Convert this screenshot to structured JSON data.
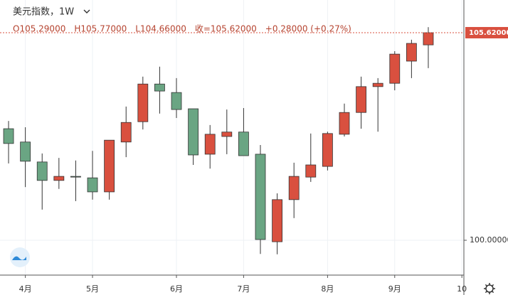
{
  "chart_data": {
    "type": "candlestick",
    "title": "美元指数，1W",
    "legend_line": [
      "O105.29000",
      "H105.77000",
      "L104.66000",
      "收=105.62000",
      "+0.28000 (+0.27%)"
    ],
    "open": [
      103.02,
      102.66,
      102.12,
      101.62,
      101.73,
      101.69,
      101.31,
      102.66,
      103.21,
      104.23,
      104.0,
      103.56,
      102.33,
      102.81,
      102.93,
      102.33,
      99.96,
      101.1,
      101.71,
      102.0,
      102.87,
      103.46,
      104.16,
      104.25,
      104.85,
      105.29
    ],
    "high": [
      103.23,
      103.06,
      102.35,
      102.23,
      102.16,
      102.42,
      102.71,
      103.62,
      104.43,
      104.7,
      104.39,
      103.56,
      103.12,
      103.54,
      103.58,
      102.58,
      101.27,
      102.1,
      102.89,
      102.94,
      103.7,
      104.43,
      104.39,
      105.12,
      105.43,
      105.77
    ],
    "low": [
      102.08,
      101.44,
      100.83,
      101.39,
      101.06,
      101.1,
      101.1,
      102.25,
      103.0,
      103.43,
      103.31,
      102.04,
      101.94,
      102.33,
      102.29,
      99.63,
      99.62,
      100.6,
      101.58,
      101.89,
      102.81,
      103.02,
      102.94,
      104.06,
      104.39,
      104.66
    ],
    "close": [
      102.62,
      102.14,
      101.62,
      101.73,
      101.71,
      101.31,
      102.71,
      103.19,
      104.23,
      104.04,
      103.54,
      102.31,
      102.87,
      102.93,
      102.29,
      100.02,
      101.1,
      101.73,
      102.04,
      102.89,
      103.46,
      104.16,
      104.25,
      105.04,
      105.33,
      105.62
    ],
    "up_color": "#d9503f",
    "down_color": "#6aa583",
    "xlim": [
      -0.51,
      27.12
    ],
    "xticks": [
      {
        "value": 1,
        "label": "4月"
      },
      {
        "value": 5,
        "label": "5月"
      },
      {
        "value": 10,
        "label": "6月"
      },
      {
        "value": 14,
        "label": "7月"
      },
      {
        "value": 19,
        "label": "8月"
      },
      {
        "value": 23,
        "label": "9月"
      },
      {
        "value": 27,
        "label": "10"
      }
    ],
    "ylim": [
      99.057,
      106.505
    ],
    "yticks": [
      {
        "value": 100,
        "label": "100.00000"
      }
    ],
    "last_price": {
      "value": 105.62,
      "label": "105.62000"
    },
    "grid": true
  }
}
